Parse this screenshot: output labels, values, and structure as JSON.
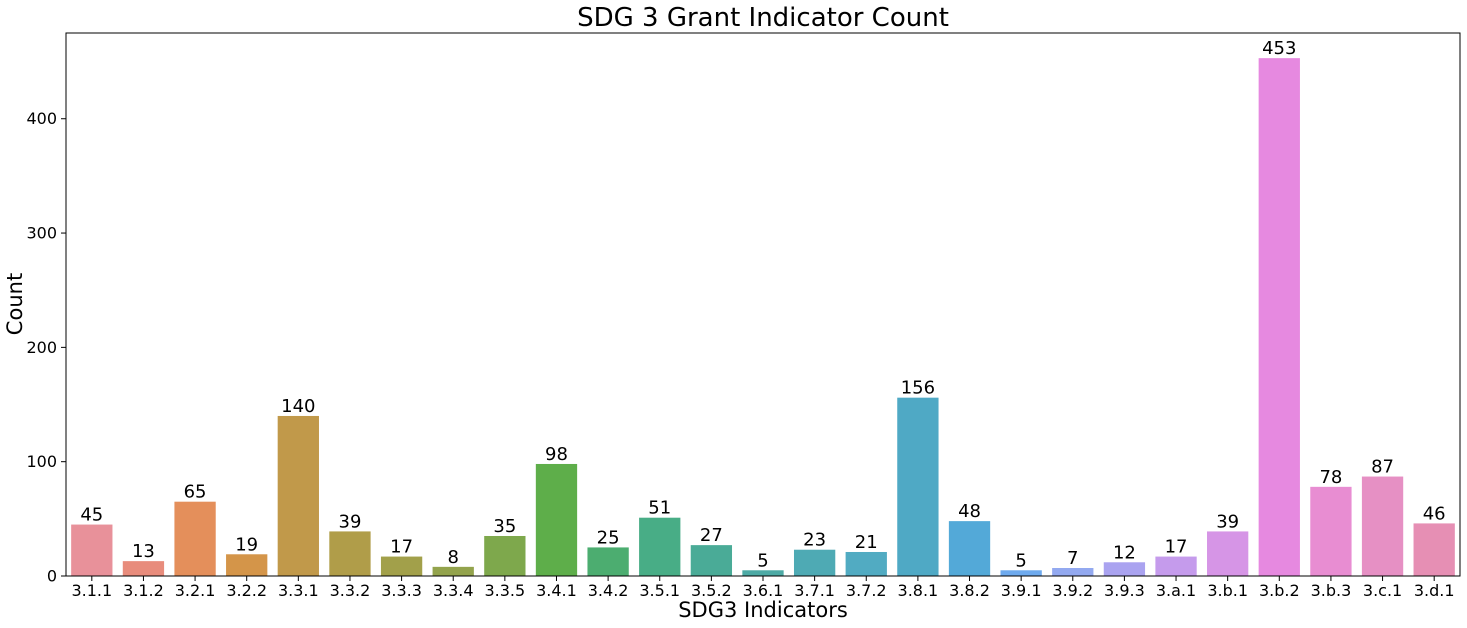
{
  "chart_data": {
    "type": "bar",
    "title": "SDG 3 Grant Indicator Count",
    "xlabel": "SDG3 Indicators",
    "ylabel": "Count",
    "ylim": [
      0,
      475
    ],
    "yticks": [
      0,
      100,
      200,
      300,
      400
    ],
    "categories": [
      "3.1.1",
      "3.1.2",
      "3.2.1",
      "3.2.2",
      "3.3.1",
      "3.3.2",
      "3.3.3",
      "3.3.4",
      "3.3.5",
      "3.4.1",
      "3.4.2",
      "3.5.1",
      "3.5.2",
      "3.6.1",
      "3.7.1",
      "3.7.2",
      "3.8.1",
      "3.8.2",
      "3.9.1",
      "3.9.2",
      "3.9.3",
      "3.a.1",
      "3.b.1",
      "3.b.2",
      "3.b.3",
      "3.c.1",
      "3.d.1"
    ],
    "values": [
      45,
      13,
      65,
      19,
      140,
      39,
      17,
      8,
      35,
      98,
      25,
      51,
      27,
      5,
      23,
      21,
      156,
      48,
      5,
      7,
      12,
      17,
      39,
      453,
      78,
      87,
      46
    ],
    "colors": [
      "#e8919a",
      "#e88c7c",
      "#e48f5b",
      "#d49549",
      "#c1994a",
      "#b09d49",
      "#a2a04a",
      "#93a34c",
      "#7ea84c",
      "#5eae4a",
      "#4cad70",
      "#48ad86",
      "#4aab97",
      "#4daaa5",
      "#4eaab4",
      "#51abc2",
      "#4fa9c5",
      "#53a9d8",
      "#6eaaee",
      "#93a9f0",
      "#aaa3f0",
      "#c59bec",
      "#d695e6",
      "#e689e0",
      "#e88dd2",
      "#e690c4",
      "#e68fb4"
    ],
    "grid": false,
    "legend": "none"
  }
}
